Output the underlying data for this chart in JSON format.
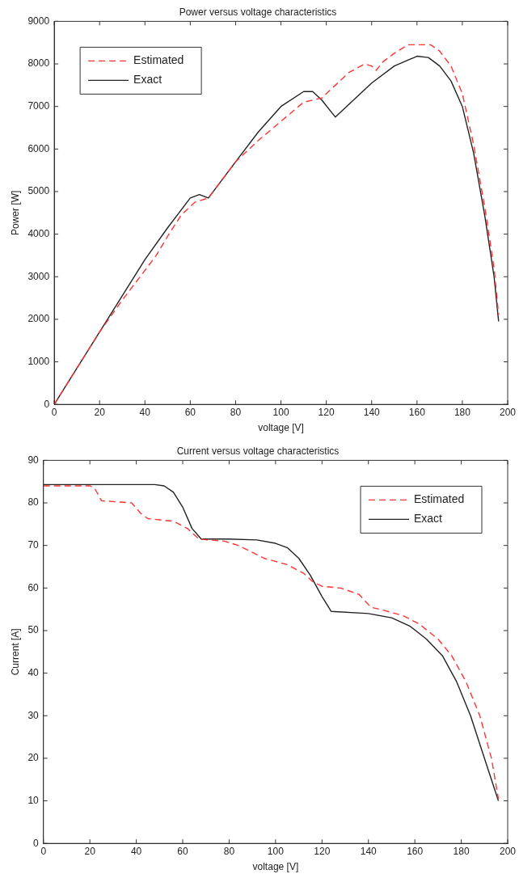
{
  "chart_data": [
    {
      "type": "line",
      "title": "Power versus voltage characteristics",
      "xlabel": "voltage [V]",
      "ylabel": "Power [W]",
      "xlim": [
        0,
        200
      ],
      "xticks": [
        0,
        20,
        40,
        60,
        80,
        100,
        120,
        140,
        160,
        180,
        200
      ],
      "ylim": [
        0,
        9000
      ],
      "yticks": [
        0,
        1000,
        2000,
        3000,
        4000,
        5000,
        6000,
        7000,
        8000,
        9000
      ],
      "grid": false,
      "legend": "top left",
      "marker": "none",
      "series": [
        {
          "name": "Estimated",
          "color": "#ff3333",
          "line_style": "dashed",
          "x": [
            0,
            20,
            30,
            40,
            45,
            50,
            56,
            62,
            68,
            80,
            90,
            100,
            110,
            118,
            124,
            130,
            137,
            140,
            142,
            145,
            150,
            156,
            166,
            170,
            175,
            180,
            185,
            190,
            194,
            196
          ],
          "values": [
            0,
            1700,
            2450,
            3150,
            3500,
            3950,
            4450,
            4750,
            4850,
            5700,
            6200,
            6650,
            7100,
            7200,
            7500,
            7800,
            8000,
            7950,
            7850,
            8050,
            8250,
            8450,
            8450,
            8300,
            7950,
            7300,
            6100,
            4600,
            3200,
            2100
          ]
        },
        {
          "name": "Exact",
          "color": "#222222",
          "line_style": "solid",
          "x": [
            0,
            20,
            40,
            50,
            55,
            60,
            64,
            68,
            80,
            90,
            100,
            110,
            114,
            118,
            124,
            130,
            140,
            150,
            160,
            165,
            170,
            175,
            180,
            185,
            190,
            194,
            196
          ],
          "values": [
            0,
            1700,
            3400,
            4150,
            4500,
            4850,
            4930,
            4850,
            5700,
            6400,
            7000,
            7350,
            7350,
            7150,
            6750,
            7050,
            7550,
            7950,
            8180,
            8150,
            7950,
            7600,
            7000,
            5900,
            4400,
            3000,
            1950
          ]
        }
      ]
    },
    {
      "type": "line",
      "title": "Current versus voltage characteristics",
      "xlabel": "voltage [V]",
      "ylabel": "Current [A]",
      "xlim": [
        0,
        200
      ],
      "xticks": [
        0,
        20,
        40,
        60,
        80,
        100,
        120,
        140,
        160,
        180,
        200
      ],
      "ylim": [
        0,
        90
      ],
      "yticks": [
        0,
        10,
        20,
        30,
        40,
        50,
        60,
        70,
        80,
        90
      ],
      "grid": false,
      "legend": "top right",
      "marker": "none",
      "series": [
        {
          "name": "Estimated",
          "color": "#ff3333",
          "line_style": "dashed",
          "x": [
            0,
            20,
            22,
            25,
            38,
            42,
            45,
            56,
            62,
            67,
            78,
            84,
            95,
            105,
            112,
            116,
            120,
            128,
            136,
            141,
            145,
            155,
            162,
            170,
            176,
            182,
            188,
            193,
            196
          ],
          "values": [
            84,
            84,
            83.5,
            80.5,
            80,
            77.5,
            76.3,
            75.7,
            74,
            71.5,
            71,
            70,
            67,
            65.5,
            63.5,
            61.5,
            60.4,
            60,
            58.5,
            55.5,
            55,
            53.5,
            51.5,
            48,
            44,
            38,
            30,
            20,
            10.5
          ]
        },
        {
          "name": "Exact",
          "color": "#222222",
          "line_style": "solid",
          "x": [
            0,
            48,
            52,
            56,
            60,
            64,
            68,
            80,
            92,
            100,
            105,
            110,
            115,
            120,
            124,
            140,
            150,
            158,
            165,
            172,
            178,
            184,
            190,
            196
          ],
          "values": [
            84.3,
            84.3,
            84,
            82.5,
            79,
            74,
            71.5,
            71.5,
            71.3,
            70.5,
            69.5,
            67,
            63,
            58,
            54.5,
            54,
            53,
            51,
            48,
            44,
            38,
            30,
            20,
            10
          ]
        }
      ]
    }
  ]
}
